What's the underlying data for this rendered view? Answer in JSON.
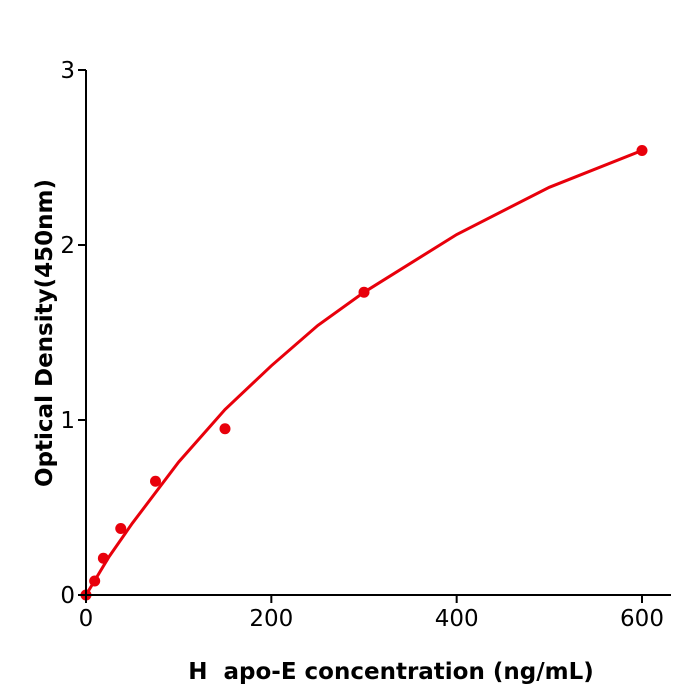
{
  "chart_data": {
    "type": "scatter",
    "title": "",
    "xlabel": "H  apo-E concentration (ng/mL)",
    "ylabel": "Optical Density(450nm)",
    "xlim": [
      0,
      630
    ],
    "ylim": [
      0,
      3
    ],
    "xticks": [
      0,
      200,
      400,
      600
    ],
    "yticks": [
      0,
      1,
      2,
      3
    ],
    "xtick_labels": [
      "0",
      "200",
      "400",
      "600"
    ],
    "ytick_labels": [
      "0",
      "1",
      "2",
      "3"
    ],
    "grid": false,
    "color": "#e8000b",
    "points": {
      "x": [
        0,
        9.375,
        18.75,
        37.5,
        75,
        150,
        300,
        600
      ],
      "y": [
        0.0,
        0.08,
        0.21,
        0.38,
        0.65,
        0.95,
        1.73,
        2.54
      ]
    },
    "fit_curve": {
      "x": [
        0,
        25,
        50,
        100,
        150,
        200,
        250,
        300,
        400,
        500,
        600
      ],
      "y": [
        0,
        0.22,
        0.41,
        0.76,
        1.06,
        1.31,
        1.54,
        1.73,
        2.06,
        2.33,
        2.54
      ]
    }
  }
}
